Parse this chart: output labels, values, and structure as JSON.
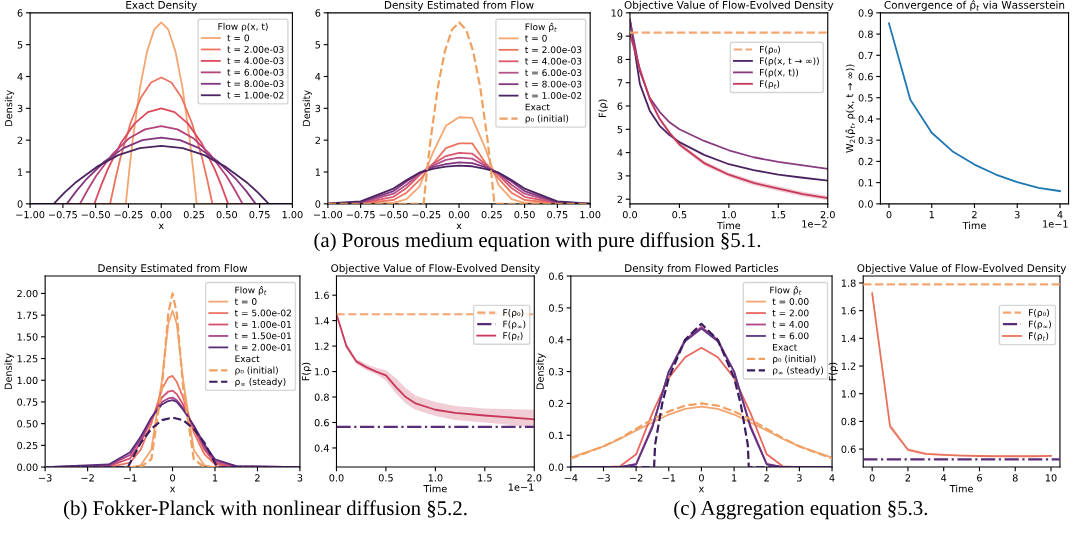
{
  "chart_data": [
    {
      "type": "line",
      "title": "Exact Density",
      "xlabel": "x",
      "ylabel": "Density",
      "legend_title": "Flow ρ(x, t)",
      "legend": "top right",
      "xlim": [
        -1,
        1
      ],
      "xticks": [
        {
          "value": -1,
          "label": "−1.00"
        },
        {
          "value": -0.75,
          "label": "−0.75"
        },
        {
          "value": -0.5,
          "label": "−0.50"
        },
        {
          "value": -0.25,
          "label": "−0.25"
        },
        {
          "value": 0,
          "label": "0.00"
        },
        {
          "value": 0.25,
          "label": "0.25"
        },
        {
          "value": 0.5,
          "label": "0.50"
        },
        {
          "value": 0.75,
          "label": "0.75"
        },
        {
          "value": 1,
          "label": "1.00"
        }
      ],
      "ylim": [
        0,
        6
      ],
      "yticks": [
        0,
        1,
        2,
        3,
        4,
        5,
        6
      ],
      "series": [
        {
          "name": "t = 0",
          "color": "#f4a672",
          "x": [
            -1,
            -0.27,
            -0.243,
            -0.216,
            -0.162,
            -0.108,
            -0.054,
            0,
            0.054,
            0.108,
            0.162,
            0.216,
            0.243,
            0.27,
            1
          ],
          "values": [
            0,
            0,
            1.08,
            2.05,
            3.65,
            4.79,
            5.47,
            5.7,
            5.47,
            4.79,
            3.65,
            2.05,
            1.08,
            0,
            0
          ]
        },
        {
          "name": "t = 2.00e-03",
          "color": "#ec7560",
          "x": [
            -1,
            -0.39,
            -0.351,
            -0.312,
            -0.234,
            -0.156,
            -0.078,
            0,
            0.078,
            0.156,
            0.234,
            0.312,
            0.351,
            0.39,
            1
          ],
          "values": [
            0,
            0,
            0.75,
            1.43,
            2.54,
            3.33,
            3.81,
            3.97,
            3.81,
            3.33,
            2.54,
            1.43,
            0.75,
            0,
            0
          ]
        },
        {
          "name": "t = 4.00e-03",
          "color": "#dc4a5e",
          "x": [
            -1,
            -0.51,
            -0.459,
            -0.408,
            -0.306,
            -0.204,
            -0.102,
            0,
            0.102,
            0.204,
            0.306,
            0.408,
            0.459,
            0.51,
            1
          ],
          "values": [
            0,
            0,
            0.57,
            1.08,
            1.92,
            2.52,
            2.88,
            3.0,
            2.88,
            2.52,
            1.92,
            1.08,
            0.57,
            0,
            0
          ]
        },
        {
          "name": "t = 6.00e-03",
          "color": "#b4437a",
          "x": [
            -1,
            -0.62,
            -0.558,
            -0.496,
            -0.372,
            -0.248,
            -0.124,
            0,
            0.124,
            0.248,
            0.372,
            0.496,
            0.558,
            0.62,
            1
          ],
          "values": [
            0,
            0,
            0.46,
            0.88,
            1.56,
            2.05,
            2.34,
            2.44,
            2.34,
            2.05,
            1.56,
            0.88,
            0.46,
            0,
            0
          ]
        },
        {
          "name": "t = 8.00e-03",
          "color": "#83367f",
          "x": [
            -1,
            -0.72,
            -0.648,
            -0.576,
            -0.432,
            -0.288,
            -0.144,
            0,
            0.144,
            0.288,
            0.432,
            0.576,
            0.648,
            0.72,
            1
          ],
          "values": [
            0,
            0,
            0.4,
            0.75,
            1.33,
            1.75,
            2.0,
            2.08,
            2.0,
            1.75,
            1.33,
            0.75,
            0.4,
            0,
            0
          ]
        },
        {
          "name": "t = 1.00e-02",
          "color": "#4b2462",
          "x": [
            -1,
            -0.82,
            -0.738,
            -0.656,
            -0.492,
            -0.328,
            -0.164,
            0,
            0.164,
            0.328,
            0.492,
            0.656,
            0.738,
            0.82,
            1
          ],
          "values": [
            0,
            0,
            0.35,
            0.66,
            1.16,
            1.53,
            1.75,
            1.82,
            1.75,
            1.53,
            1.16,
            0.66,
            0.35,
            0,
            0
          ]
        }
      ]
    },
    {
      "type": "line",
      "title": "Density Estimated from Flow",
      "xlabel": "x",
      "ylabel": "Density",
      "legend_title": "Flow ρ̂$_{t}$",
      "legend": "top right",
      "annotations": [
        "Exact"
      ],
      "xlim": [
        -1,
        1
      ],
      "xticks": [
        {
          "value": -1,
          "label": "−1.00"
        },
        {
          "value": -0.75,
          "label": "−0.75"
        },
        {
          "value": -0.5,
          "label": "−0.50"
        },
        {
          "value": -0.25,
          "label": "−0.25"
        },
        {
          "value": 0,
          "label": "0.00"
        },
        {
          "value": 0.25,
          "label": "0.25"
        },
        {
          "value": 0.5,
          "label": "0.50"
        },
        {
          "value": 0.75,
          "label": "0.75"
        },
        {
          "value": 1,
          "label": "1.00"
        }
      ],
      "ylim": [
        0,
        6
      ],
      "yticks": [
        0,
        1,
        2,
        3,
        4,
        5,
        6
      ],
      "x": [
        -1,
        -0.75,
        -0.5,
        -0.4,
        -0.3,
        -0.2,
        -0.1,
        0,
        0.1,
        0.2,
        0.3,
        0.4,
        0.5,
        0.75,
        1
      ],
      "series": [
        {
          "name": "t = 0",
          "color": "#f4a672",
          "values": [
            0,
            0,
            0.03,
            0.15,
            0.55,
            1.6,
            2.45,
            2.72,
            2.7,
            1.75,
            0.6,
            0.15,
            0.03,
            0,
            0
          ]
        },
        {
          "name": "t = 2.00e-03",
          "color": "#ec7560",
          "values": [
            0,
            0.01,
            0.12,
            0.35,
            0.75,
            1.25,
            1.75,
            1.9,
            1.9,
            1.3,
            0.8,
            0.35,
            0.12,
            0.01,
            0
          ]
        },
        {
          "name": "t = 4.00e-03",
          "color": "#dc5a6e",
          "values": [
            0,
            0.02,
            0.22,
            0.5,
            0.9,
            1.25,
            1.5,
            1.6,
            1.58,
            1.25,
            0.9,
            0.5,
            0.22,
            0.02,
            0
          ]
        },
        {
          "name": "t = 6.00e-03",
          "color": "#b4538a",
          "values": [
            0,
            0.03,
            0.32,
            0.6,
            0.95,
            1.2,
            1.38,
            1.45,
            1.42,
            1.2,
            0.95,
            0.6,
            0.32,
            0.03,
            0
          ]
        },
        {
          "name": "t = 8.00e-03",
          "color": "#83367f",
          "values": [
            0,
            0.05,
            0.4,
            0.7,
            0.98,
            1.15,
            1.25,
            1.3,
            1.28,
            1.15,
            0.98,
            0.7,
            0.4,
            0.05,
            0
          ]
        },
        {
          "name": "t = 1.00e-02",
          "color": "#4b2462",
          "values": [
            0.01,
            0.08,
            0.48,
            0.75,
            0.98,
            1.1,
            1.17,
            1.2,
            1.18,
            1.1,
            0.98,
            0.75,
            0.48,
            0.08,
            0.01
          ]
        },
        {
          "name": "ρ₀ (initial)",
          "color": "#f0a060",
          "line_style": "dashed",
          "x": [
            -1,
            -0.27,
            -0.243,
            -0.216,
            -0.162,
            -0.108,
            -0.054,
            0,
            0.054,
            0.108,
            0.162,
            0.216,
            0.243,
            0.27,
            1
          ],
          "values": [
            0,
            0,
            1.08,
            2.05,
            3.65,
            4.79,
            5.47,
            5.7,
            5.47,
            4.79,
            3.65,
            2.05,
            1.08,
            0,
            0
          ]
        }
      ]
    },
    {
      "type": "line",
      "title": "Objective Value of Flow-Evolved Density",
      "xlabel": "Time",
      "ylabel": "F(ρ)",
      "legend": "top right",
      "annotations": [
        "1e−2"
      ],
      "xlim": [
        0,
        2
      ],
      "xticks": [
        {
          "value": 0,
          "label": "0.0"
        },
        0.5,
        {
          "value": 1,
          "label": "1.0"
        },
        1.5,
        {
          "value": 2,
          "label": "2.0"
        }
      ],
      "ylim": [
        1.8,
        10
      ],
      "yticks": [
        2,
        3,
        4,
        5,
        6,
        7,
        8,
        9,
        10
      ],
      "x": [
        0,
        0.1,
        0.2,
        0.3,
        0.4,
        0.5,
        0.75,
        1,
        1.25,
        1.5,
        1.75,
        2
      ],
      "series": [
        {
          "name": "F(ρ₀)",
          "color": "#f4a672",
          "line_style": "dashed",
          "x": [
            0,
            2
          ],
          "values": [
            9.15,
            9.15
          ]
        },
        {
          "name": "F(ρ(x, t → ∞))",
          "color": "#4b2462",
          "values": [
            9.7,
            6.95,
            5.8,
            5.15,
            4.75,
            4.45,
            3.9,
            3.5,
            3.25,
            3.05,
            2.92,
            2.8
          ]
        },
        {
          "name": "F(ρ(x, t))",
          "color": "#8a3a80",
          "values": [
            9.7,
            7.5,
            6.35,
            5.75,
            5.3,
            5.0,
            4.5,
            4.1,
            3.8,
            3.6,
            3.45,
            3.3
          ]
        },
        {
          "name": "F(ρ$_{t}$)",
          "color": "#c8385a",
          "values": [
            9.1,
            7.6,
            6.3,
            5.45,
            4.85,
            4.35,
            3.55,
            3.05,
            2.7,
            2.45,
            2.22,
            2.05
          ],
          "lower": [
            9.05,
            7.5,
            6.2,
            5.35,
            4.75,
            4.25,
            3.45,
            2.95,
            2.6,
            2.35,
            2.12,
            1.95
          ],
          "upper": [
            9.15,
            7.7,
            6.4,
            5.55,
            4.95,
            4.45,
            3.65,
            3.15,
            2.8,
            2.55,
            2.32,
            2.15
          ]
        }
      ]
    },
    {
      "type": "line",
      "title": "Convergence of ρ̂$_{t}$ via Wasserstein",
      "xlabel": "Time",
      "ylabel": "W$_{2}$(ρ̂$_{t}$, ρ(x, t → ∞))",
      "annotations": [
        "1e−1"
      ],
      "xlim": [
        -0.2,
        4.2
      ],
      "xticks": [
        0,
        1,
        2,
        3,
        4
      ],
      "ylim": [
        0,
        0.9
      ],
      "yticks": [
        {
          "value": 0,
          "label": "0.0"
        },
        0.1,
        0.2,
        0.3,
        0.4,
        0.5,
        0.6,
        0.7,
        0.8,
        0.9
      ],
      "x": [
        0,
        0.5,
        1,
        1.5,
        2,
        2.5,
        3,
        3.5,
        4
      ],
      "series": [
        {
          "color": "#1f77b4",
          "values": [
            0.85,
            0.49,
            0.335,
            0.245,
            0.185,
            0.138,
            0.102,
            0.075,
            0.06
          ]
        }
      ]
    },
    {
      "type": "line",
      "title": "Density Estimated from Flow",
      "xlabel": "x",
      "ylabel": "Density",
      "legend_title": "Flow ρ̂$_{t}$",
      "legend": "top right",
      "annotations": [
        "Exact"
      ],
      "xlim": [
        -3,
        3
      ],
      "xticks": [
        {
          "value": -3,
          "label": "−3"
        },
        {
          "value": -2,
          "label": "−2"
        },
        {
          "value": -1,
          "label": "−1"
        },
        0,
        1,
        2,
        3
      ],
      "ylim": [
        0,
        2.2
      ],
      "yticks": [
        {
          "value": 0,
          "label": "0.00"
        },
        {
          "value": 0.25,
          "label": "0.25"
        },
        {
          "value": 0.5,
          "label": "0.50"
        },
        {
          "value": 0.75,
          "label": "0.75"
        },
        {
          "value": 1,
          "label": "1.00"
        },
        {
          "value": 1.25,
          "label": "1.25"
        },
        {
          "value": 1.5,
          "label": "1.50"
        },
        {
          "value": 1.75,
          "label": "1.75"
        },
        {
          "value": 2,
          "label": "2.00"
        }
      ],
      "x": [
        -3,
        -1.5,
        -1,
        -0.75,
        -0.5,
        -0.25,
        -0.1,
        0,
        0.1,
        0.25,
        0.5,
        0.75,
        1,
        1.5,
        3
      ],
      "series": [
        {
          "name": "t = 0",
          "color": "#f4a672",
          "values": [
            0,
            0,
            0,
            0.02,
            0.2,
            1.0,
            1.65,
            1.8,
            1.65,
            1.0,
            0.2,
            0.02,
            0,
            0,
            0
          ]
        },
        {
          "name": "t = 5.00e-02",
          "color": "#ec7560",
          "values": [
            0,
            0,
            0.05,
            0.2,
            0.5,
            0.9,
            1.03,
            1.05,
            0.98,
            0.8,
            0.4,
            0.15,
            0.03,
            0,
            0
          ]
        },
        {
          "name": "t = 1.00e-01",
          "color": "#d6506e",
          "values": [
            0,
            0.01,
            0.1,
            0.28,
            0.55,
            0.8,
            0.87,
            0.88,
            0.84,
            0.72,
            0.45,
            0.2,
            0.05,
            0,
            0
          ]
        },
        {
          "name": "t = 1.50e-01",
          "color": "#a8478a",
          "values": [
            0,
            0.02,
            0.14,
            0.32,
            0.56,
            0.75,
            0.79,
            0.8,
            0.77,
            0.68,
            0.47,
            0.23,
            0.07,
            0.01,
            0
          ]
        },
        {
          "name": "t = 2.00e-01",
          "color": "#5a2d78",
          "values": [
            0,
            0.03,
            0.17,
            0.35,
            0.57,
            0.72,
            0.76,
            0.77,
            0.75,
            0.66,
            0.48,
            0.26,
            0.09,
            0.01,
            0
          ]
        },
        {
          "name": "ρ₀ (initial)",
          "color": "#f0a060",
          "line_style": "dashed",
          "values": [
            0,
            0,
            0,
            0,
            0.09,
            0.92,
            1.77,
            2.0,
            1.77,
            0.92,
            0.09,
            0,
            0,
            0,
            0
          ]
        },
        {
          "name": "ρ$_{∞}$ (steady)",
          "color": "#3b1d5e",
          "line_style": "dashed",
          "x": [
            -3,
            -1.05,
            -0.75,
            -0.5,
            -0.25,
            0,
            0.25,
            0.5,
            0.75,
            1.05,
            3
          ],
          "values": [
            0,
            0,
            0.28,
            0.44,
            0.54,
            0.57,
            0.54,
            0.44,
            0.28,
            0,
            0
          ]
        }
      ]
    },
    {
      "type": "line",
      "title": "Objective Value of Flow-Evolved Density",
      "xlabel": "Time",
      "ylabel": "F(ρ)",
      "legend": "top right",
      "annotations": [
        "1e−1"
      ],
      "xlim": [
        0,
        2
      ],
      "xticks": [
        {
          "value": 0,
          "label": "0.0"
        },
        0.5,
        {
          "value": 1,
          "label": "1.0"
        },
        1.5,
        {
          "value": 2,
          "label": "2.0"
        }
      ],
      "ylim": [
        0.25,
        1.75
      ],
      "yticks": [
        0.4,
        0.6,
        0.8,
        {
          "value": 1,
          "label": "1.0"
        },
        1.2,
        1.4,
        1.6
      ],
      "x": [
        0,
        0.1,
        0.2,
        0.3,
        0.4,
        0.5,
        0.6,
        0.7,
        0.8,
        1,
        1.2,
        1.5,
        2
      ],
      "series": [
        {
          "name": "F(ρ₀)",
          "color": "#f4a672",
          "line_style": "dashed",
          "x": [
            0,
            2
          ],
          "values": [
            1.45,
            1.45
          ]
        },
        {
          "name": "F(ρ$_{∞}$)",
          "color": "#5a2d78",
          "line_style": "dashdot",
          "x": [
            0,
            2
          ],
          "values": [
            0.565,
            0.565
          ]
        },
        {
          "name": "F(ρ$_{t}$)",
          "color": "#c8385a",
          "values": [
            1.45,
            1.2,
            1.08,
            1.035,
            1.0,
            0.97,
            0.88,
            0.8,
            0.75,
            0.7,
            0.675,
            0.655,
            0.625
          ],
          "lower": [
            1.44,
            1.18,
            1.06,
            1.01,
            0.98,
            0.93,
            0.83,
            0.75,
            0.7,
            0.65,
            0.62,
            0.6,
            0.56
          ],
          "upper": [
            1.46,
            1.22,
            1.1,
            1.06,
            1.03,
            1.01,
            0.95,
            0.87,
            0.81,
            0.76,
            0.73,
            0.71,
            0.7
          ]
        }
      ]
    },
    {
      "type": "line",
      "title": "Density from Flowed Particles",
      "xlabel": "x",
      "ylabel": "Density",
      "legend_title": "Flow ρ̂$_{t}$",
      "legend": "top right",
      "annotations": [
        "Exact"
      ],
      "xlim": [
        -4,
        4
      ],
      "xticks": [
        {
          "value": -4,
          "label": "−4"
        },
        {
          "value": -3,
          "label": "−3"
        },
        {
          "value": -2,
          "label": "−2"
        },
        {
          "value": -1,
          "label": "−1"
        },
        0,
        1,
        2,
        3,
        4
      ],
      "ylim": [
        0,
        0.6
      ],
      "yticks": [
        {
          "value": 0,
          "label": "0.0"
        },
        0.1,
        0.2,
        0.3,
        0.4,
        0.5,
        0.6
      ],
      "x": [
        -4,
        -3,
        -2.5,
        -2,
        -1.5,
        -1,
        -0.5,
        0,
        0.5,
        1,
        1.5,
        2,
        2.5,
        3,
        4
      ],
      "series": [
        {
          "name": "t = 0.00",
          "color": "#f2a56f",
          "values": [
            0.03,
            0.065,
            0.088,
            0.115,
            0.14,
            0.165,
            0.183,
            0.19,
            0.183,
            0.165,
            0.14,
            0.115,
            0.088,
            0.065,
            0.03
          ]
        },
        {
          "name": "t = 2.00",
          "color": "#e8675e",
          "values": [
            0,
            0,
            0.002,
            0.04,
            0.17,
            0.28,
            0.345,
            0.375,
            0.345,
            0.28,
            0.17,
            0.04,
            0.002,
            0,
            0
          ]
        },
        {
          "name": "t = 4.00",
          "color": "#b0468a",
          "values": [
            0,
            0,
            0,
            0.01,
            0.13,
            0.3,
            0.4,
            0.44,
            0.4,
            0.3,
            0.13,
            0.01,
            0,
            0,
            0
          ]
        },
        {
          "name": "t = 6.00",
          "color": "#5c3584",
          "values": [
            0,
            0,
            0,
            0.008,
            0.125,
            0.3,
            0.395,
            0.435,
            0.395,
            0.3,
            0.125,
            0.008,
            0,
            0,
            0
          ]
        },
        {
          "name": "ρ₀ (initial)",
          "color": "#f0a060",
          "line_style": "dashed",
          "values": [
            0.027,
            0.065,
            0.09,
            0.12,
            0.15,
            0.175,
            0.193,
            0.2,
            0.193,
            0.175,
            0.15,
            0.12,
            0.09,
            0.065,
            0.027
          ]
        },
        {
          "name": "ρ$_{∞}$ (steady)",
          "color": "#3b1d5e",
          "line_style": "dashed",
          "x": [
            -4,
            -1.45,
            -1.42,
            -1.2,
            -1,
            -0.5,
            0,
            0.5,
            1,
            1.2,
            1.42,
            1.45,
            4
          ],
          "values": [
            0,
            0,
            0.07,
            0.2,
            0.28,
            0.4,
            0.45,
            0.4,
            0.28,
            0.2,
            0.07,
            0,
            0
          ]
        }
      ]
    },
    {
      "type": "line",
      "title": "Objective Value of Flow-Evolved Density",
      "xlabel": "Time",
      "ylabel": "F(ρ)",
      "legend": "top right",
      "xlim": [
        -0.5,
        10.5
      ],
      "xticks": [
        0,
        2,
        4,
        6,
        8,
        10
      ],
      "ylim": [
        0.47,
        1.85
      ],
      "yticks": [
        0.6,
        0.8,
        {
          "value": 1,
          "label": "1.0"
        },
        1.2,
        1.4,
        1.6,
        1.8
      ],
      "x": [
        0,
        1,
        2,
        3,
        4,
        5,
        6,
        7,
        8,
        9,
        10
      ],
      "series": [
        {
          "name": "F(ρ₀)",
          "color": "#f4a672",
          "line_style": "dashed",
          "x": [
            -0.5,
            10.5
          ],
          "values": [
            1.79,
            1.79
          ]
        },
        {
          "name": "F(ρ$_{∞}$)",
          "color": "#5a2d78",
          "line_style": "dashdot",
          "x": [
            -0.5,
            10.5
          ],
          "values": [
            0.525,
            0.525
          ]
        },
        {
          "name": "F̂(ρ$_{t}$)",
          "color": "#e8735c",
          "values": [
            1.725,
            0.765,
            0.595,
            0.565,
            0.558,
            0.553,
            0.55,
            0.548,
            0.548,
            0.548,
            0.55
          ],
          "lower": [
            1.69,
            0.745,
            0.585,
            0.558,
            0.552,
            0.548,
            0.545,
            0.543,
            0.543,
            0.543,
            0.545
          ],
          "upper": [
            1.76,
            0.79,
            0.61,
            0.575,
            0.566,
            0.56,
            0.556,
            0.553,
            0.553,
            0.553,
            0.556
          ]
        }
      ]
    },
    {
      "type": "other",
      "title": "(a) Porous medium equation with pure diffusion §5.1."
    },
    {
      "type": "other",
      "title": "(b) Fokker-Planck with nonlinear diffusion §5.2."
    },
    {
      "type": "other",
      "title": "(c) Aggregation equation §5.3."
    }
  ]
}
